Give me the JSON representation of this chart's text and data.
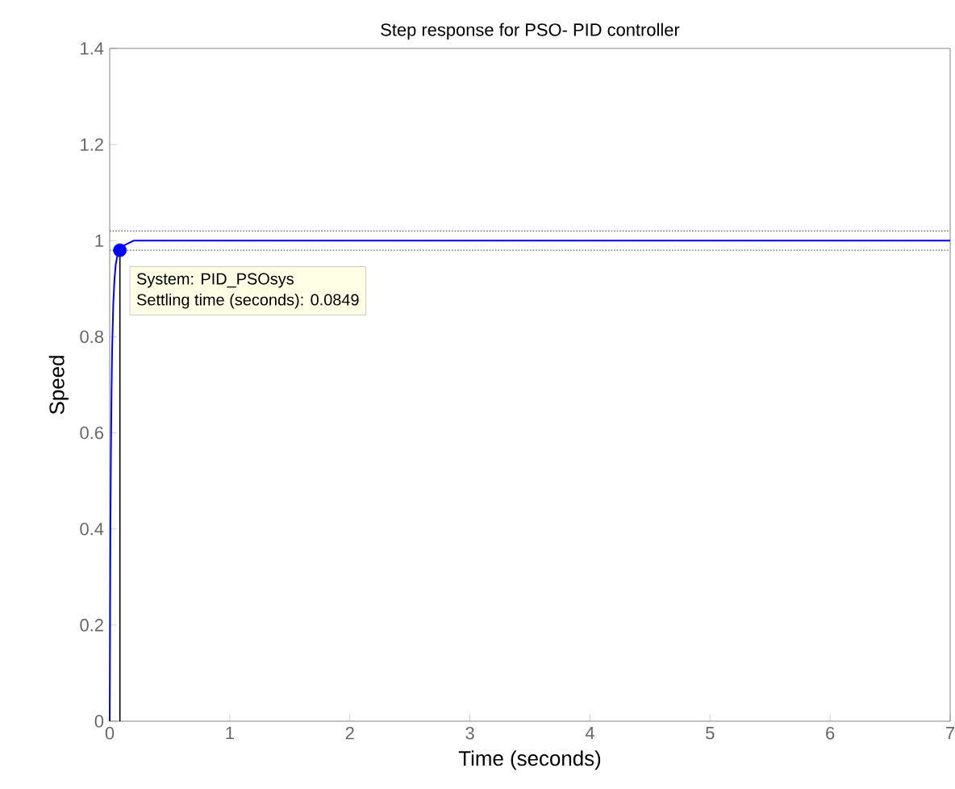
{
  "chart_data": {
    "type": "line",
    "title": "Step response for PSO- PID controller",
    "xlabel": "Time (seconds)",
    "ylabel": "Speed",
    "x": [
      0,
      0.003,
      0.006,
      0.01,
      0.015,
      0.02,
      0.03,
      0.04,
      0.05,
      0.065,
      0.0849,
      0.12,
      0.2,
      0.4,
      1,
      7
    ],
    "series": [
      {
        "color": "#0000ff",
        "values": [
          0,
          0.2,
          0.4,
          0.55,
          0.68,
          0.77,
          0.87,
          0.92,
          0.95,
          0.97,
          0.98,
          0.99,
          1.0,
          1.0,
          1.0,
          1.0
        ]
      }
    ],
    "xlim": [
      0,
      7
    ],
    "ylim": [
      0,
      1.4
    ],
    "xticks": [
      0,
      1,
      2,
      3,
      4,
      5,
      6,
      7
    ],
    "yticks": [
      0,
      0.2,
      0.4,
      0.6,
      0.8,
      1,
      1.2,
      1.4
    ],
    "ref_lines": [
      {
        "axis": "y",
        "value": 1.02,
        "color": "#808080",
        "line_style": "dotted"
      },
      {
        "axis": "y",
        "value": 0.98,
        "color": "#808080",
        "line_style": "dotted"
      },
      {
        "axis": "x",
        "value": 0.0849,
        "color": "#000000",
        "line_style": "solid"
      }
    ],
    "annotations": [
      {
        "text": "System: PID_PSOsys",
        "x": 0.0849,
        "y": 0.98
      },
      "Settling time (seconds): 0.0849"
    ],
    "grid": false,
    "marker": "none",
    "line_style": "solid"
  }
}
